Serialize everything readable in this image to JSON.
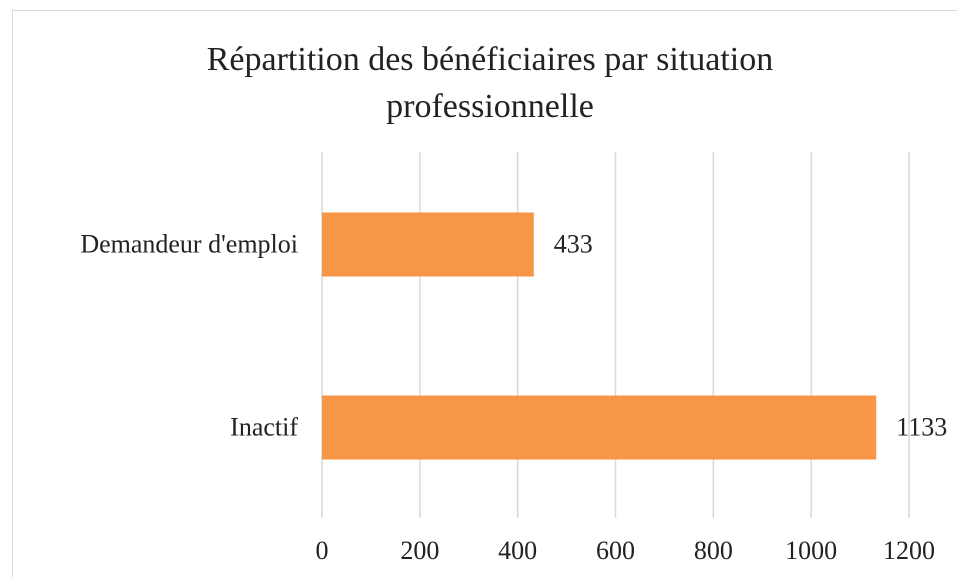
{
  "chart_data": {
    "type": "bar",
    "orientation": "horizontal",
    "title": "Répartition des bénéficiaires par situation professionnelle",
    "categories": [
      "Demandeur d'emploi",
      "Inactif"
    ],
    "values": [
      433,
      1133
    ],
    "color": "#f79646",
    "xlim": [
      0,
      1200
    ],
    "xticks": [
      0,
      200,
      400,
      600,
      800,
      1000,
      1200
    ],
    "grid": true
  }
}
